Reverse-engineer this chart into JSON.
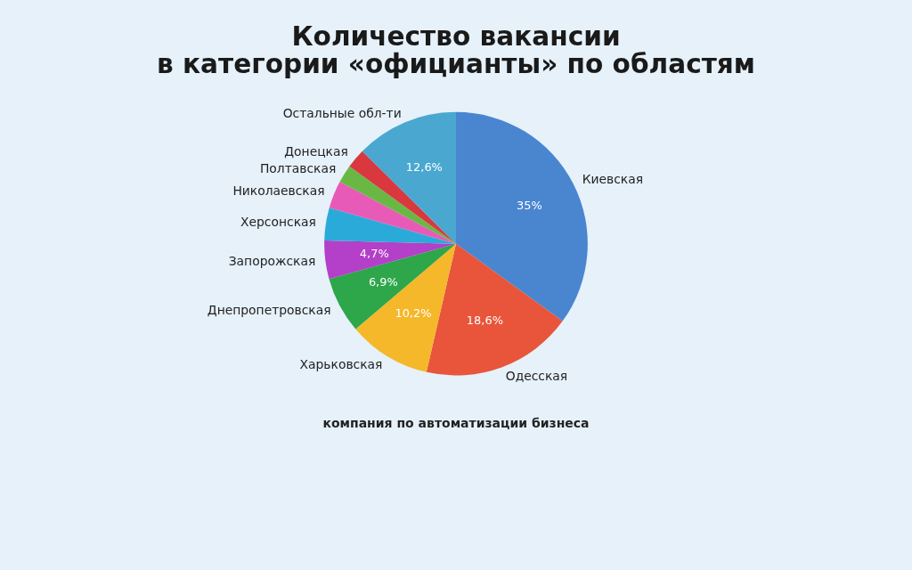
{
  "chart_data": {
    "type": "pie",
    "title": "Количество вакансии\nв категории «официанты» по областям",
    "categories": [
      "Киевская",
      "Одесская",
      "Харьковская",
      "Днепропетровская",
      "Запорожская",
      "Херсонская",
      "Николаевская",
      "Полтавская",
      "Донецкая",
      "Остальные обл-ти"
    ],
    "values": [
      35,
      18.6,
      10.2,
      6.9,
      4.7,
      4.0,
      3.4,
      2.2,
      2.4,
      12.6
    ],
    "value_labels": [
      "35%",
      "18,6%",
      "10,2%",
      "6,9%",
      "4,7%",
      null,
      null,
      null,
      null,
      "12,6%"
    ],
    "colors": [
      "#4a86d0",
      "#e8553a",
      "#f5b82a",
      "#2ea64a",
      "#b43fc8",
      "#2aaad8",
      "#e85ab8",
      "#6ab844",
      "#d8383e",
      "#4aa8d0"
    ],
    "legend": false,
    "annotations": [
      "компания по автоматизации бизнеса"
    ]
  }
}
